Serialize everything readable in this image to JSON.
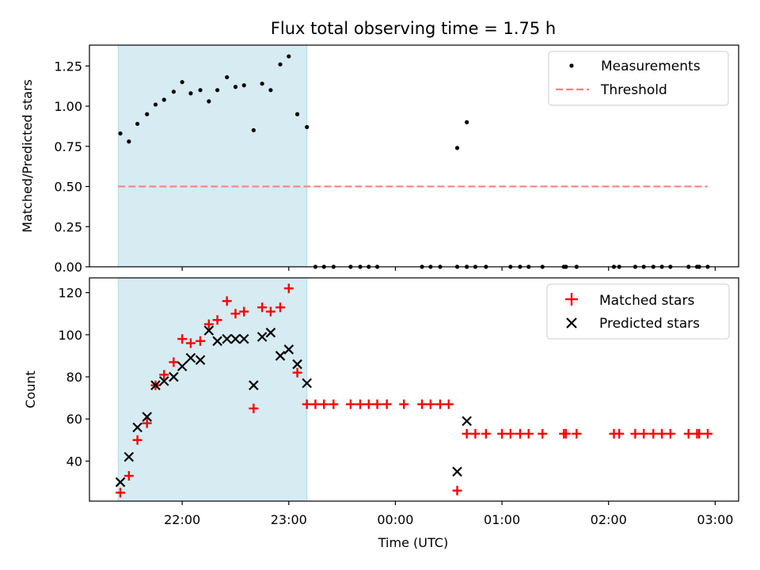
{
  "title": "Flux total observing time = 1.75 h",
  "colors": {
    "shade": "#add8e6",
    "threshold": "#ff7f7f",
    "matched": "#ff0000",
    "predicted": "#000000",
    "measurement": "#000000"
  },
  "chart_data": [
    {
      "type": "scatter",
      "ylabel": "Matched/Predicted stars",
      "xlabel": "",
      "x_unit": "hours since 22:00 UTC (axis shown as clock time)",
      "xlim": [
        -0.87,
        5.22
      ],
      "ylim": [
        0,
        1.38
      ],
      "yticks": [
        0,
        0.25,
        0.5,
        0.75,
        1.0,
        1.25
      ],
      "ytick_labels": [
        "0.00",
        "0.25",
        "0.50",
        "0.75",
        "1.00",
        "1.25"
      ],
      "shaded_x": [
        -0.6,
        1.17
      ],
      "legend": {
        "position": "upper right",
        "entries": [
          "Measurements",
          "Threshold"
        ]
      },
      "threshold": {
        "name": "Threshold",
        "y": 0.5,
        "x": [
          -0.6,
          4.93
        ]
      },
      "series": [
        {
          "name": "Measurements",
          "points": [
            [
              -0.58,
              0.83
            ],
            [
              -0.5,
              0.78
            ],
            [
              -0.42,
              0.89
            ],
            [
              -0.33,
              0.95
            ],
            [
              -0.25,
              1.01
            ],
            [
              -0.17,
              1.04
            ],
            [
              -0.08,
              1.09
            ],
            [
              0.0,
              1.15
            ],
            [
              0.08,
              1.08
            ],
            [
              0.17,
              1.1
            ],
            [
              0.25,
              1.03
            ],
            [
              0.33,
              1.1
            ],
            [
              0.42,
              1.18
            ],
            [
              0.5,
              1.12
            ],
            [
              0.58,
              1.13
            ],
            [
              0.67,
              0.85
            ],
            [
              0.75,
              1.14
            ],
            [
              0.83,
              1.1
            ],
            [
              0.92,
              1.26
            ],
            [
              1.0,
              1.31
            ],
            [
              1.08,
              0.95
            ],
            [
              1.17,
              0.87
            ],
            [
              1.25,
              0
            ],
            [
              1.33,
              0
            ],
            [
              1.42,
              0
            ],
            [
              1.58,
              0
            ],
            [
              1.67,
              0
            ],
            [
              1.75,
              0
            ],
            [
              1.83,
              0
            ],
            [
              2.25,
              0
            ],
            [
              2.33,
              0
            ],
            [
              2.42,
              0
            ],
            [
              2.58,
              0
            ],
            [
              2.67,
              0
            ],
            [
              2.58,
              0.74
            ],
            [
              2.67,
              0.9
            ],
            [
              2.75,
              0
            ],
            [
              2.85,
              0
            ],
            [
              3.08,
              0
            ],
            [
              3.17,
              0
            ],
            [
              3.25,
              0
            ],
            [
              3.38,
              0
            ],
            [
              3.58,
              0
            ],
            [
              3.6,
              0
            ],
            [
              3.7,
              0
            ],
            [
              4.05,
              0
            ],
            [
              4.1,
              0
            ],
            [
              4.25,
              0
            ],
            [
              4.33,
              0
            ],
            [
              4.42,
              0
            ],
            [
              4.5,
              0
            ],
            [
              4.58,
              0
            ],
            [
              4.75,
              0
            ],
            [
              4.83,
              0
            ],
            [
              4.85,
              0
            ],
            [
              4.93,
              0
            ]
          ]
        }
      ]
    },
    {
      "type": "scatter",
      "ylabel": "Count",
      "xlabel": "Time (UTC)",
      "x_unit": "hours since 22:00 UTC (axis shown as clock time)",
      "xlim": [
        -0.87,
        5.22
      ],
      "ylim": [
        21,
        127
      ],
      "yticks": [
        40,
        60,
        80,
        100,
        120
      ],
      "ytick_labels": [
        "40",
        "60",
        "80",
        "100",
        "120"
      ],
      "xticks": [
        0,
        1,
        2,
        3,
        4,
        5
      ],
      "xtick_labels": [
        "22:00",
        "23:00",
        "00:00",
        "01:00",
        "02:00",
        "03:00"
      ],
      "shaded_x": [
        -0.6,
        1.17
      ],
      "legend": {
        "position": "upper right",
        "entries": [
          "Matched stars",
          "Predicted stars"
        ]
      },
      "series": [
        {
          "name": "Matched stars",
          "marker": "plus",
          "points": [
            [
              -0.58,
              25
            ],
            [
              -0.5,
              33
            ],
            [
              -0.42,
              50
            ],
            [
              -0.33,
              58
            ],
            [
              -0.25,
              76
            ],
            [
              -0.17,
              81
            ],
            [
              -0.08,
              87
            ],
            [
              0.0,
              98
            ],
            [
              0.08,
              96
            ],
            [
              0.17,
              97
            ],
            [
              0.25,
              105
            ],
            [
              0.33,
              107
            ],
            [
              0.42,
              116
            ],
            [
              0.5,
              110
            ],
            [
              0.58,
              111
            ],
            [
              0.67,
              65
            ],
            [
              0.75,
              113
            ],
            [
              0.83,
              111
            ],
            [
              0.92,
              113
            ],
            [
              1.0,
              122
            ],
            [
              1.08,
              82
            ],
            [
              1.17,
              67
            ],
            [
              1.25,
              67
            ],
            [
              1.33,
              67
            ],
            [
              1.42,
              67
            ],
            [
              1.58,
              67
            ],
            [
              1.67,
              67
            ],
            [
              1.75,
              67
            ],
            [
              1.83,
              67
            ],
            [
              1.92,
              67
            ],
            [
              2.08,
              67
            ],
            [
              2.25,
              67
            ],
            [
              2.33,
              67
            ],
            [
              2.42,
              67
            ],
            [
              2.5,
              67
            ],
            [
              2.58,
              26
            ],
            [
              2.67,
              53
            ],
            [
              2.75,
              53
            ],
            [
              2.85,
              53
            ],
            [
              3.0,
              53
            ],
            [
              3.08,
              53
            ],
            [
              3.17,
              53
            ],
            [
              3.25,
              53
            ],
            [
              3.38,
              53
            ],
            [
              3.58,
              53
            ],
            [
              3.6,
              53
            ],
            [
              3.7,
              53
            ],
            [
              4.05,
              53
            ],
            [
              4.1,
              53
            ],
            [
              4.25,
              53
            ],
            [
              4.33,
              53
            ],
            [
              4.42,
              53
            ],
            [
              4.5,
              53
            ],
            [
              4.58,
              53
            ],
            [
              4.75,
              53
            ],
            [
              4.83,
              53
            ],
            [
              4.85,
              53
            ],
            [
              4.93,
              53
            ]
          ]
        },
        {
          "name": "Predicted stars",
          "marker": "cross",
          "points": [
            [
              -0.58,
              30
            ],
            [
              -0.5,
              42
            ],
            [
              -0.42,
              56
            ],
            [
              -0.33,
              61
            ],
            [
              -0.25,
              76
            ],
            [
              -0.17,
              78
            ],
            [
              -0.08,
              80
            ],
            [
              0.0,
              85
            ],
            [
              0.08,
              89
            ],
            [
              0.17,
              88
            ],
            [
              0.25,
              102
            ],
            [
              0.33,
              97
            ],
            [
              0.42,
              98
            ],
            [
              0.5,
              98
            ],
            [
              0.58,
              98
            ],
            [
              0.67,
              76
            ],
            [
              0.75,
              99
            ],
            [
              0.83,
              101
            ],
            [
              0.92,
              90
            ],
            [
              1.0,
              93
            ],
            [
              1.08,
              86
            ],
            [
              1.17,
              77
            ],
            [
              2.58,
              35
            ],
            [
              2.67,
              59
            ]
          ]
        }
      ]
    }
  ]
}
